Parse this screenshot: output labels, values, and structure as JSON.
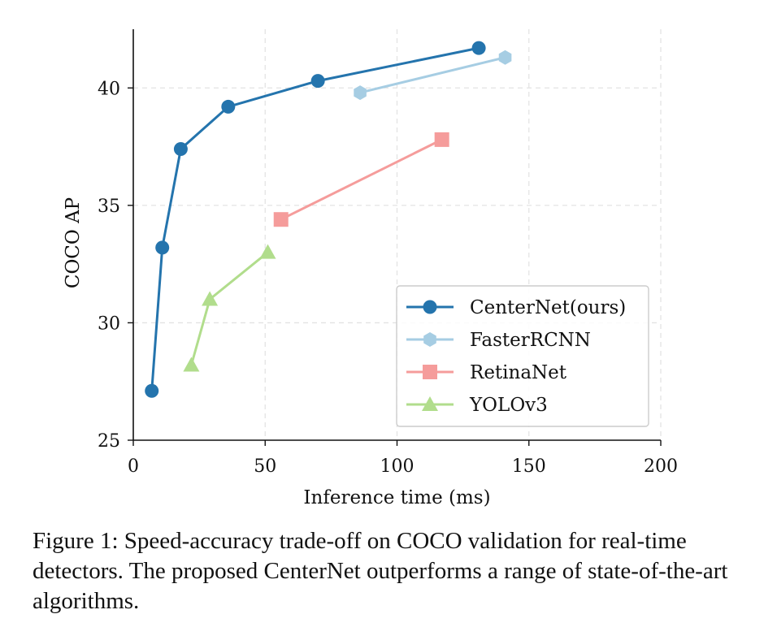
{
  "chart_data": {
    "type": "line",
    "xlabel": "Inference time (ms)",
    "ylabel": "COCO AP",
    "xlim": [
      0,
      200
    ],
    "ylim": [
      25,
      42.5
    ],
    "xticks": [
      0,
      50,
      100,
      150,
      200
    ],
    "yticks": [
      25,
      30,
      35,
      40
    ],
    "grid": true,
    "legend_position": "lower-right",
    "series": [
      {
        "name": "CenterNet(ours)",
        "marker": "circle",
        "color": "#2474ad",
        "x": [
          7,
          11,
          18,
          36,
          70,
          131
        ],
        "y": [
          27.1,
          33.2,
          37.4,
          39.2,
          40.3,
          41.7
        ]
      },
      {
        "name": "FasterRCNN",
        "marker": "hexagon",
        "color": "#a6cde3",
        "x": [
          86,
          141
        ],
        "y": [
          39.8,
          41.3
        ]
      },
      {
        "name": "RetinaNet",
        "marker": "square",
        "color": "#f59c9b",
        "x": [
          56,
          117
        ],
        "y": [
          34.4,
          37.8
        ]
      },
      {
        "name": "YOLOv3",
        "marker": "triangle",
        "color": "#b1dd8c",
        "x": [
          22,
          29,
          51
        ],
        "y": [
          28.2,
          31.0,
          33.0
        ]
      }
    ]
  },
  "caption": "Figure 1: Speed-accuracy trade-off on COCO validation for real-time detectors. The proposed CenterNet outperforms a range of state-of-the-art algorithms."
}
